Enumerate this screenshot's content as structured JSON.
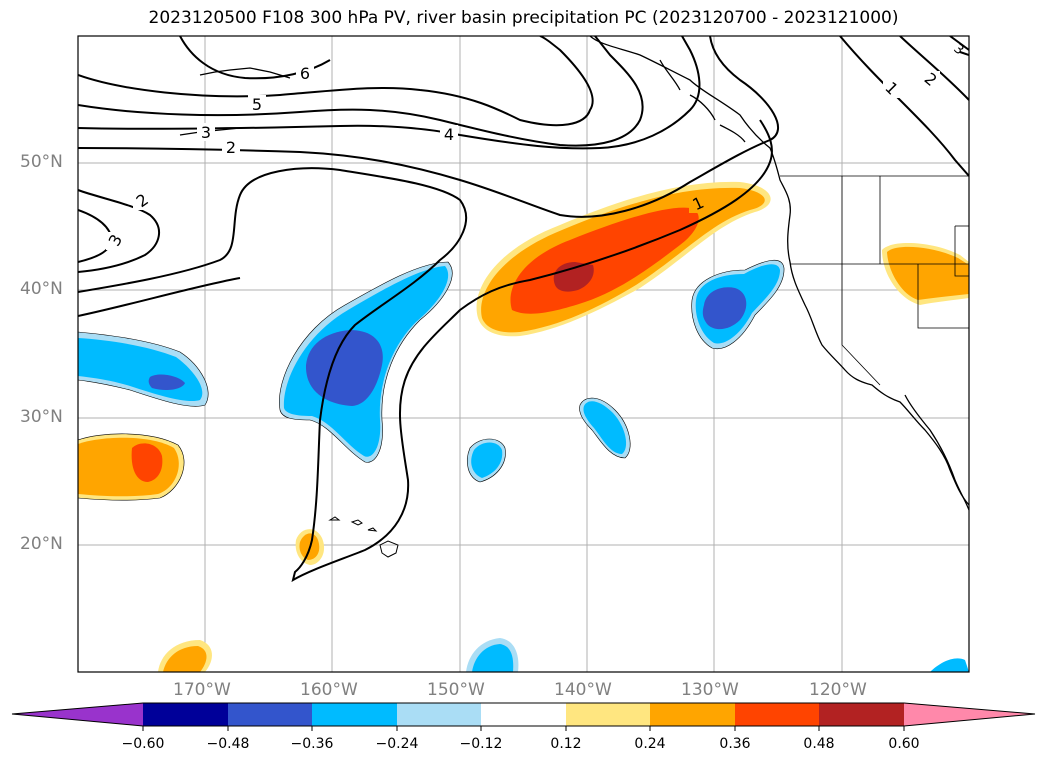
{
  "title": "2023120500 F108 300 hPa PV, river basin precipitation PC (2023120700 - 2023121000)",
  "latitudes": [
    "50°N",
    "40°N",
    "30°N",
    "20°N"
  ],
  "longitudes": [
    "170°W",
    "160°W",
    "150°W",
    "140°W",
    "130°W",
    "120°W"
  ],
  "contour_labels": [
    "6",
    "5",
    "3",
    "2",
    "4",
    "2",
    "3",
    "1",
    "1",
    "2",
    "3"
  ],
  "colorbar": {
    "ticks": [
      "−0.60",
      "−0.48",
      "−0.36",
      "−0.24",
      "−0.12",
      "0.12",
      "0.24",
      "0.36",
      "0.48",
      "0.60"
    ],
    "colors": [
      "#9933cc",
      "#000099",
      "#3355cc",
      "#00bbff",
      "#aaddf5",
      "#ffffff",
      "#ffe680",
      "#ffa500",
      "#ff4400",
      "#b22222",
      "#ff88aa"
    ]
  },
  "colors": {
    "land_outline": "#000000",
    "grid": "#b0b0b0",
    "pv_contour": "#000000"
  }
}
